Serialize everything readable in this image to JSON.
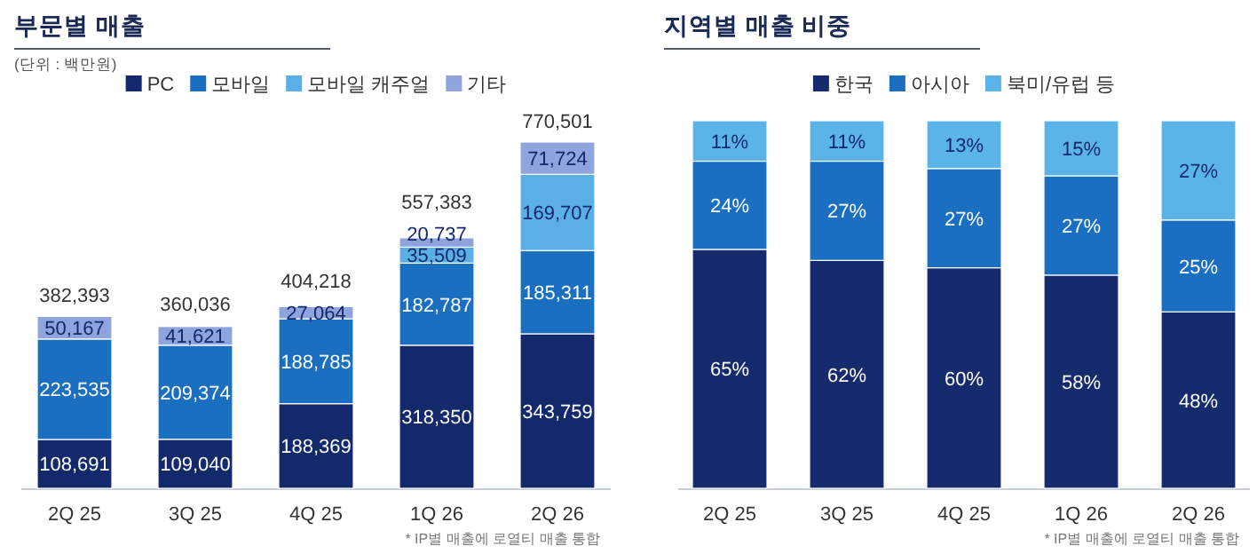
{
  "chart_data": [
    {
      "type": "bar",
      "title": "부문별 매출",
      "subtitle": "(단위 : 백만원)",
      "stacked": true,
      "legend": "top",
      "categories": [
        "2Q 25",
        "3Q 25",
        "4Q 25",
        "1Q 26",
        "2Q 26"
      ],
      "series": [
        {
          "name": "PC",
          "color": "#13296b",
          "values": [
            108691,
            109040,
            188369,
            318350,
            343759
          ],
          "value_labels": [
            "108,691",
            "109,040",
            "188,369",
            "318,350",
            "343,759"
          ]
        },
        {
          "name": "모바일",
          "color": "#1b6fc0",
          "values": [
            223535,
            209374,
            188785,
            182787,
            185311
          ],
          "value_labels": [
            "223,535",
            "209,374",
            "188,785",
            "182,787",
            "185,311"
          ]
        },
        {
          "name": "모바일 캐주얼",
          "color": "#5ab0e6",
          "values": [
            null,
            null,
            null,
            35509,
            169707
          ],
          "value_labels": [
            null,
            null,
            null,
            "35,509",
            "169,707"
          ]
        },
        {
          "name": "기타",
          "color": "#8fa3dc",
          "values": [
            50167,
            41621,
            27064,
            20737,
            71724
          ],
          "value_labels": [
            "50,167",
            "41,621",
            "27,064",
            "20,737",
            "71,724"
          ]
        }
      ],
      "totals": [
        "382,393",
        "360,036",
        "404,218",
        "557,383",
        "770,501"
      ],
      "annotations": [
        "* IP별 매출에 로열티 매출 통합"
      ]
    },
    {
      "type": "bar",
      "title": "지역별 매출 비중",
      "stacked": true,
      "legend": "top",
      "categories": [
        "2Q 25",
        "3Q 25",
        "4Q 25",
        "1Q 26",
        "2Q 26"
      ],
      "series": [
        {
          "name": "한국",
          "color": "#152b6e",
          "values": [
            65,
            62,
            60,
            58,
            48
          ],
          "value_labels": [
            "65%",
            "62%",
            "60%",
            "58%",
            "48%"
          ]
        },
        {
          "name": "아시아",
          "color": "#1b6fc0",
          "values": [
            24,
            27,
            27,
            27,
            25
          ],
          "value_labels": [
            "24%",
            "27%",
            "27%",
            "27%",
            "25%"
          ]
        },
        {
          "name": "북미/유럽 등",
          "color": "#5ab4e8",
          "values": [
            11,
            11,
            13,
            15,
            27
          ],
          "value_labels": [
            "11%",
            "11%",
            "13%",
            "15%",
            "27%"
          ]
        }
      ],
      "annotations": [
        "* IP별 매출에 로열티 매출 통합"
      ]
    }
  ]
}
